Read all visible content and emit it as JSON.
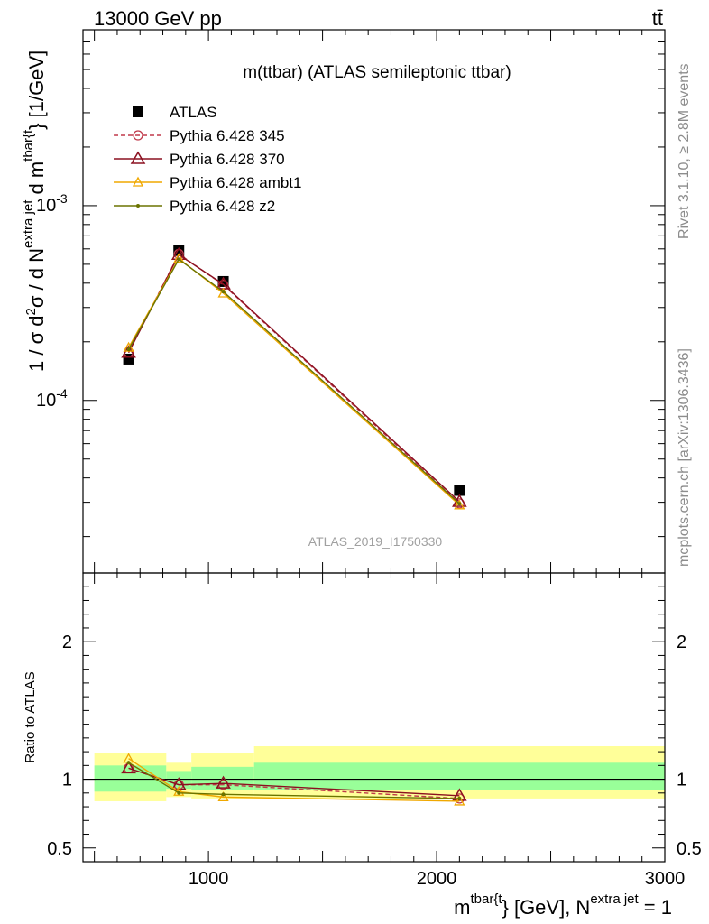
{
  "header": {
    "left": "13000 GeV pp",
    "right": "tt̄"
  },
  "watermark": "ATLAS_2019_I1750330",
  "side_labels": {
    "rivet": "Rivet 3.1.10, ≥ 2.8M events",
    "mcplots": "mcplots.cern.ch [arXiv:1306.3436]"
  },
  "chart_data": [
    {
      "type": "scatter",
      "title": "m(ttbar) (ATLAS semileptonic ttbar)",
      "ylabel": "1 / σ d²σ / d N^{extra jet} d m^{tbar{t}} [1/GeV]",
      "yscale": "log",
      "ylim": [
        1.3e-05,
        0.008
      ],
      "xlim": [
        450,
        3000
      ],
      "y_ticks": [
        "10^{-3}",
        "10^{-4}"
      ],
      "legend_position": "top-left",
      "x": [
        650,
        870,
        1065,
        2100
      ],
      "series": [
        {
          "name": "ATLAS",
          "values": [
            0.000163,
            0.000588,
            0.000408,
            3.45e-05
          ],
          "color": "#000000",
          "marker": "square"
        },
        {
          "name": "Pythia 6.428 345",
          "values": [
            0.000177,
            0.000565,
            0.000392,
            2.96e-05
          ],
          "color": "#c0394a",
          "marker": "open-circle",
          "dash": true
        },
        {
          "name": "Pythia 6.428 370",
          "values": [
            0.000176,
            0.00056,
            0.000395,
            3.02e-05
          ],
          "color": "#8b1020",
          "marker": "open-triangle"
        },
        {
          "name": "Pythia 6.428 ambt1",
          "values": [
            0.000187,
            0.000535,
            0.000355,
            2.9e-05
          ],
          "color": "#f0a800",
          "marker": "open-triangle-small"
        },
        {
          "name": "Pythia 6.428 z2",
          "values": [
            0.000183,
            0.00053,
            0.000362,
            2.95e-05
          ],
          "color": "#6b7400",
          "marker": "dot"
        }
      ]
    },
    {
      "type": "scatter",
      "ylabel": "Ratio to ATLAS",
      "ylim": [
        0.4,
        2.5
      ],
      "xlim": [
        450,
        3000
      ],
      "y_ticks": [
        "0.5",
        "1",
        "2"
      ],
      "x_ticks": [
        "1000",
        "2000",
        "3000"
      ],
      "xlabel": "m^{tbar{t}} [GeV], N^{extra jet} = 1",
      "bands": [
        {
          "x": [
            500,
            815
          ],
          "inner": [
            0.91,
            1.1
          ],
          "outer": [
            0.84,
            1.19
          ]
        },
        {
          "x": [
            815,
            925
          ],
          "inner": [
            0.93,
            1.06
          ],
          "outer": [
            0.87,
            1.12
          ]
        },
        {
          "x": [
            925,
            1200
          ],
          "inner": [
            0.92,
            1.09
          ],
          "outer": [
            0.86,
            1.19
          ]
        },
        {
          "x": [
            1200,
            3000
          ],
          "inner": [
            0.92,
            1.12
          ],
          "outer": [
            0.86,
            1.24
          ]
        }
      ],
      "x": [
        650,
        870,
        1065,
        2100
      ],
      "series": [
        {
          "name": "Pythia 6.428 345",
          "values": [
            1.08,
            0.96,
            0.96,
            0.86
          ],
          "color": "#c0394a",
          "marker": "open-circle",
          "dash": true
        },
        {
          "name": "Pythia 6.428 370",
          "values": [
            1.08,
            0.96,
            0.97,
            0.88
          ],
          "color": "#8b1020",
          "marker": "open-triangle"
        },
        {
          "name": "Pythia 6.428 ambt1",
          "values": [
            1.15,
            0.91,
            0.87,
            0.84
          ],
          "color": "#f0a800",
          "marker": "open-triangle-small"
        },
        {
          "name": "Pythia 6.428 z2",
          "values": [
            1.12,
            0.9,
            0.89,
            0.86
          ],
          "color": "#6b7400",
          "marker": "dot"
        }
      ]
    }
  ]
}
